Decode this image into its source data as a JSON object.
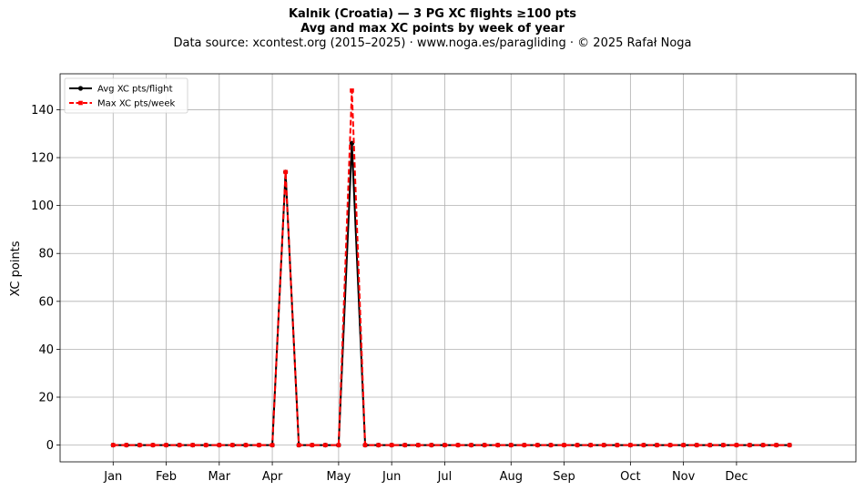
{
  "header": {
    "title": "Kalnik (Croatia)  —  3 PG XC flights ≥100 pts",
    "subtitle": "Avg and max XC points by week of year",
    "source": "Data source: xcontest.org (2015–2025)  ·  www.noga.es/paragliding  ·  © 2025 Rafał Noga"
  },
  "chart_data": {
    "type": "line",
    "title": "Kalnik (Croatia)  —  3 PG XC flights ≥100 pts",
    "subtitle": "Avg and max XC points by week of year",
    "xlabel": "",
    "ylabel": "XC points",
    "x": [
      1,
      2,
      3,
      4,
      5,
      6,
      7,
      8,
      9,
      10,
      11,
      12,
      13,
      14,
      15,
      16,
      17,
      18,
      19,
      20,
      21,
      22,
      23,
      24,
      25,
      26,
      27,
      28,
      29,
      30,
      31,
      32,
      33,
      34,
      35,
      36,
      37,
      38,
      39,
      40,
      41,
      42,
      43,
      44,
      45,
      46,
      47,
      48,
      49,
      50,
      51,
      52
    ],
    "xlim": [
      -3,
      57
    ],
    "x_ticks": [
      {
        "label": "Jan",
        "x": 1
      },
      {
        "label": "Feb",
        "x": 5
      },
      {
        "label": "Mar",
        "x": 9
      },
      {
        "label": "Apr",
        "x": 13
      },
      {
        "label": "May",
        "x": 18
      },
      {
        "label": "Jun",
        "x": 22
      },
      {
        "label": "Jul",
        "x": 26
      },
      {
        "label": "Aug",
        "x": 31
      },
      {
        "label": "Sep",
        "x": 35
      },
      {
        "label": "Oct",
        "x": 40
      },
      {
        "label": "Nov",
        "x": 44
      },
      {
        "label": "Dec",
        "x": 48
      }
    ],
    "ylim": [
      -7,
      155
    ],
    "y_ticks": [
      0,
      20,
      40,
      60,
      80,
      100,
      120,
      140
    ],
    "grid": true,
    "legend_position": "top-left",
    "series": [
      {
        "name": "Avg XC pts/flight",
        "color": "#000000",
        "line_style": "solid",
        "marker": "circle",
        "values": [
          0,
          0,
          0,
          0,
          0,
          0,
          0,
          0,
          0,
          0,
          0,
          0,
          0,
          114,
          0,
          0,
          0,
          0,
          126,
          0,
          0,
          0,
          0,
          0,
          0,
          0,
          0,
          0,
          0,
          0,
          0,
          0,
          0,
          0,
          0,
          0,
          0,
          0,
          0,
          0,
          0,
          0,
          0,
          0,
          0,
          0,
          0,
          0,
          0,
          0,
          0,
          0
        ]
      },
      {
        "name": "Max XC pts/week",
        "color": "#ff0000",
        "line_style": "dashed",
        "marker": "square",
        "values": [
          0,
          0,
          0,
          0,
          0,
          0,
          0,
          0,
          0,
          0,
          0,
          0,
          0,
          114,
          0,
          0,
          0,
          0,
          148,
          0,
          0,
          0,
          0,
          0,
          0,
          0,
          0,
          0,
          0,
          0,
          0,
          0,
          0,
          0,
          0,
          0,
          0,
          0,
          0,
          0,
          0,
          0,
          0,
          0,
          0,
          0,
          0,
          0,
          0,
          0,
          0,
          0
        ]
      }
    ]
  }
}
